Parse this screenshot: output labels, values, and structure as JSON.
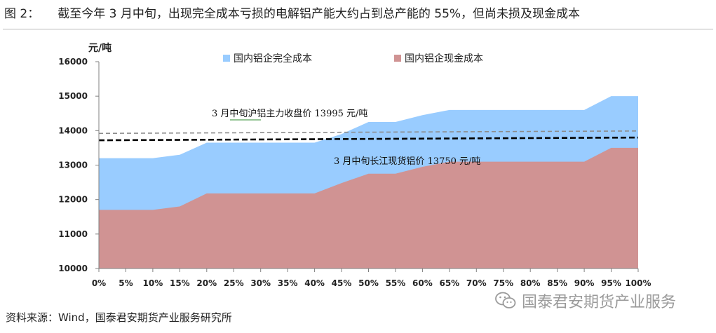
{
  "header": {
    "label": "图 2：",
    "title": "截至今年 3 月中旬，出现完全成本亏损的电解铝产能大约占到总产能的 55%，但尚未损及现金成本"
  },
  "footer": {
    "source": "资料来源：Wind，国泰君安期货产业服务研究所"
  },
  "watermark": {
    "text": "国泰君安期货产业服务",
    "icon": "wechat-icon"
  },
  "colors": {
    "full_cost": "#99ccff",
    "cash_cost": "#d09393",
    "shfe_line": "#8c8c8c",
    "spot_line": "#000000",
    "annotation_underline": "#2e8b2e"
  },
  "chart_data": {
    "type": "area",
    "ylabel": "元/吨",
    "ylim": [
      10000,
      16000
    ],
    "yticks": [
      10000,
      11000,
      12000,
      13000,
      14000,
      15000,
      16000
    ],
    "x": [
      "0%",
      "5%",
      "10%",
      "15%",
      "20%",
      "25%",
      "30%",
      "35%",
      "40%",
      "45%",
      "50%",
      "55%",
      "60%",
      "65%",
      "70%",
      "75%",
      "80%",
      "85%",
      "90%",
      "95%",
      "100%"
    ],
    "grid": false,
    "legend": "top",
    "series": [
      {
        "name": "国内铝企完全成本",
        "values": [
          13200,
          13200,
          13200,
          13300,
          13650,
          13650,
          13650,
          13650,
          13650,
          13900,
          14250,
          14250,
          14450,
          14600,
          14600,
          14600,
          14600,
          14600,
          14600,
          15000,
          15000
        ]
      },
      {
        "name": "国内铝企现金成本",
        "values": [
          11700,
          11700,
          11700,
          11800,
          12180,
          12180,
          12180,
          12180,
          12180,
          12480,
          12750,
          12750,
          12950,
          13100,
          13100,
          13100,
          13100,
          13100,
          13100,
          13500,
          13500
        ]
      }
    ],
    "reference_lines": [
      {
        "label": "3 月中旬沪铝主力收盘价 13995 元/吨",
        "y_start": 13920,
        "y_end": 13990
      },
      {
        "label": "3 月中旬长江现货铝价 13750 元/吨",
        "y_start": 13720,
        "y_end": 13800
      }
    ]
  }
}
